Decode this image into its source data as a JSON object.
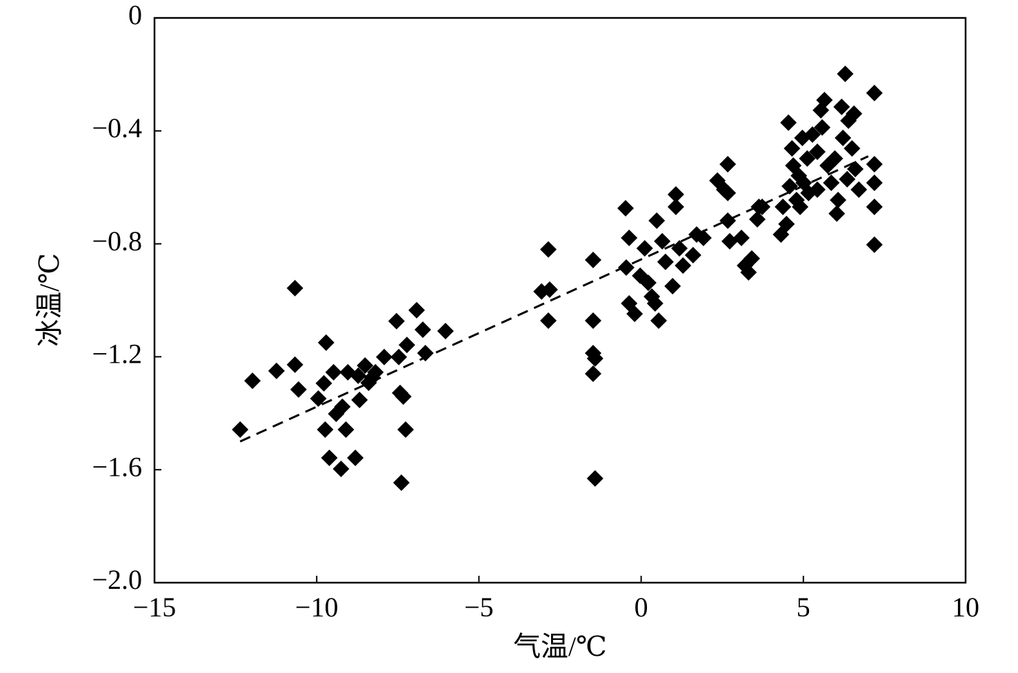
{
  "chart_data": {
    "type": "scatter",
    "xlabel": "气温/℃",
    "ylabel": "冰温/℃",
    "xlim": [
      -15,
      10
    ],
    "ylim": [
      -2.0,
      0
    ],
    "xticks": [
      {
        "value": -15,
        "label": "−15"
      },
      {
        "value": -10,
        "label": "−10"
      },
      {
        "value": -5,
        "label": "−5"
      },
      0,
      5,
      10
    ],
    "yticks": [
      {
        "value": -2.0,
        "label": "−2.0"
      },
      {
        "value": -1.6,
        "label": "−1.6"
      },
      {
        "value": -1.2,
        "label": "−1.2"
      },
      {
        "value": -0.8,
        "label": "−0.8"
      },
      {
        "value": -0.4,
        "label": "−0.4"
      },
      0
    ],
    "color": "#000000",
    "x": [
      -12.36,
      -11.98,
      -11.24,
      -10.67,
      -10.67,
      -10.56,
      -9.95,
      -9.78,
      -9.71,
      -9.74,
      -9.61,
      -9.48,
      -9.4,
      -9.25,
      -9.21,
      -9.1,
      -9.04,
      -8.81,
      -8.72,
      -8.68,
      -8.51,
      -8.4,
      -8.19,
      -8.29,
      -7.92,
      -7.54,
      -7.47,
      -7.43,
      -7.39,
      -7.33,
      -7.26,
      -7.22,
      -6.92,
      -6.73,
      -6.65,
      -6.03,
      -3.07,
      -2.86,
      -2.86,
      -2.82,
      -1.48,
      -1.48,
      -1.48,
      -1.42,
      -1.48,
      -1.42,
      -0.48,
      -0.37,
      -0.46,
      -0.37,
      -0.2,
      -0.03,
      0.11,
      0.22,
      0.33,
      0.43,
      0.54,
      0.48,
      0.65,
      0.75,
      0.97,
      1.07,
      1.07,
      1.18,
      1.29,
      1.6,
      1.71,
      1.92,
      2.35,
      2.56,
      2.67,
      2.67,
      2.67,
      2.73,
      3.09,
      3.2,
      3.31,
      3.41,
      3.58,
      3.63,
      3.73,
      4.31,
      4.37,
      4.48,
      4.54,
      4.58,
      4.65,
      4.69,
      4.79,
      4.86,
      4.9,
      4.97,
      5.01,
      5.12,
      5.16,
      5.28,
      5.43,
      5.43,
      5.54,
      5.58,
      5.65,
      5.75,
      5.86,
      5.97,
      6.03,
      6.07,
      6.18,
      6.22,
      6.29,
      6.35,
      6.39,
      6.5,
      6.56,
      6.6,
      6.71,
      7.19,
      7.19,
      7.19,
      7.19,
      7.19
    ],
    "values": [
      -1.458,
      -1.285,
      -1.25,
      -0.957,
      -1.228,
      -1.316,
      -1.348,
      -1.294,
      -1.15,
      -1.458,
      -1.558,
      -1.255,
      -1.402,
      -1.597,
      -1.377,
      -1.458,
      -1.255,
      -1.558,
      -1.267,
      -1.353,
      -1.231,
      -1.292,
      -1.255,
      -1.274,
      -1.201,
      -1.074,
      -1.201,
      -1.328,
      -1.646,
      -1.341,
      -1.458,
      -1.158,
      -1.035,
      -1.104,
      -1.187,
      -1.109,
      -0.969,
      -0.82,
      -1.072,
      -0.962,
      -0.857,
      -1.072,
      -1.187,
      -1.206,
      -1.26,
      -1.631,
      -0.674,
      -0.779,
      -0.884,
      -1.011,
      -1.048,
      -0.913,
      -0.816,
      -0.938,
      -0.987,
      -1.011,
      -1.072,
      -0.718,
      -0.791,
      -0.864,
      -0.95,
      -0.625,
      -0.669,
      -0.816,
      -0.877,
      -0.84,
      -0.767,
      -0.779,
      -0.576,
      -0.608,
      -0.518,
      -0.62,
      -0.718,
      -0.791,
      -0.779,
      -0.877,
      -0.901,
      -0.852,
      -0.713,
      -0.669,
      -0.669,
      -0.767,
      -0.669,
      -0.73,
      -0.371,
      -0.596,
      -0.462,
      -0.523,
      -0.645,
      -0.559,
      -0.669,
      -0.425,
      -0.584,
      -0.498,
      -0.62,
      -0.413,
      -0.474,
      -0.608,
      -0.327,
      -0.388,
      -0.291,
      -0.523,
      -0.584,
      -0.498,
      -0.693,
      -0.645,
      -0.315,
      -0.425,
      -0.198,
      -0.571,
      -0.364,
      -0.462,
      -0.339,
      -0.535,
      -0.608,
      -0.266,
      -0.518,
      -0.584,
      -0.669,
      -0.803
    ],
    "fit_line": {
      "x": [
        -12.36,
        7.0
      ],
      "y": [
        -1.5,
        -0.49
      ]
    }
  }
}
